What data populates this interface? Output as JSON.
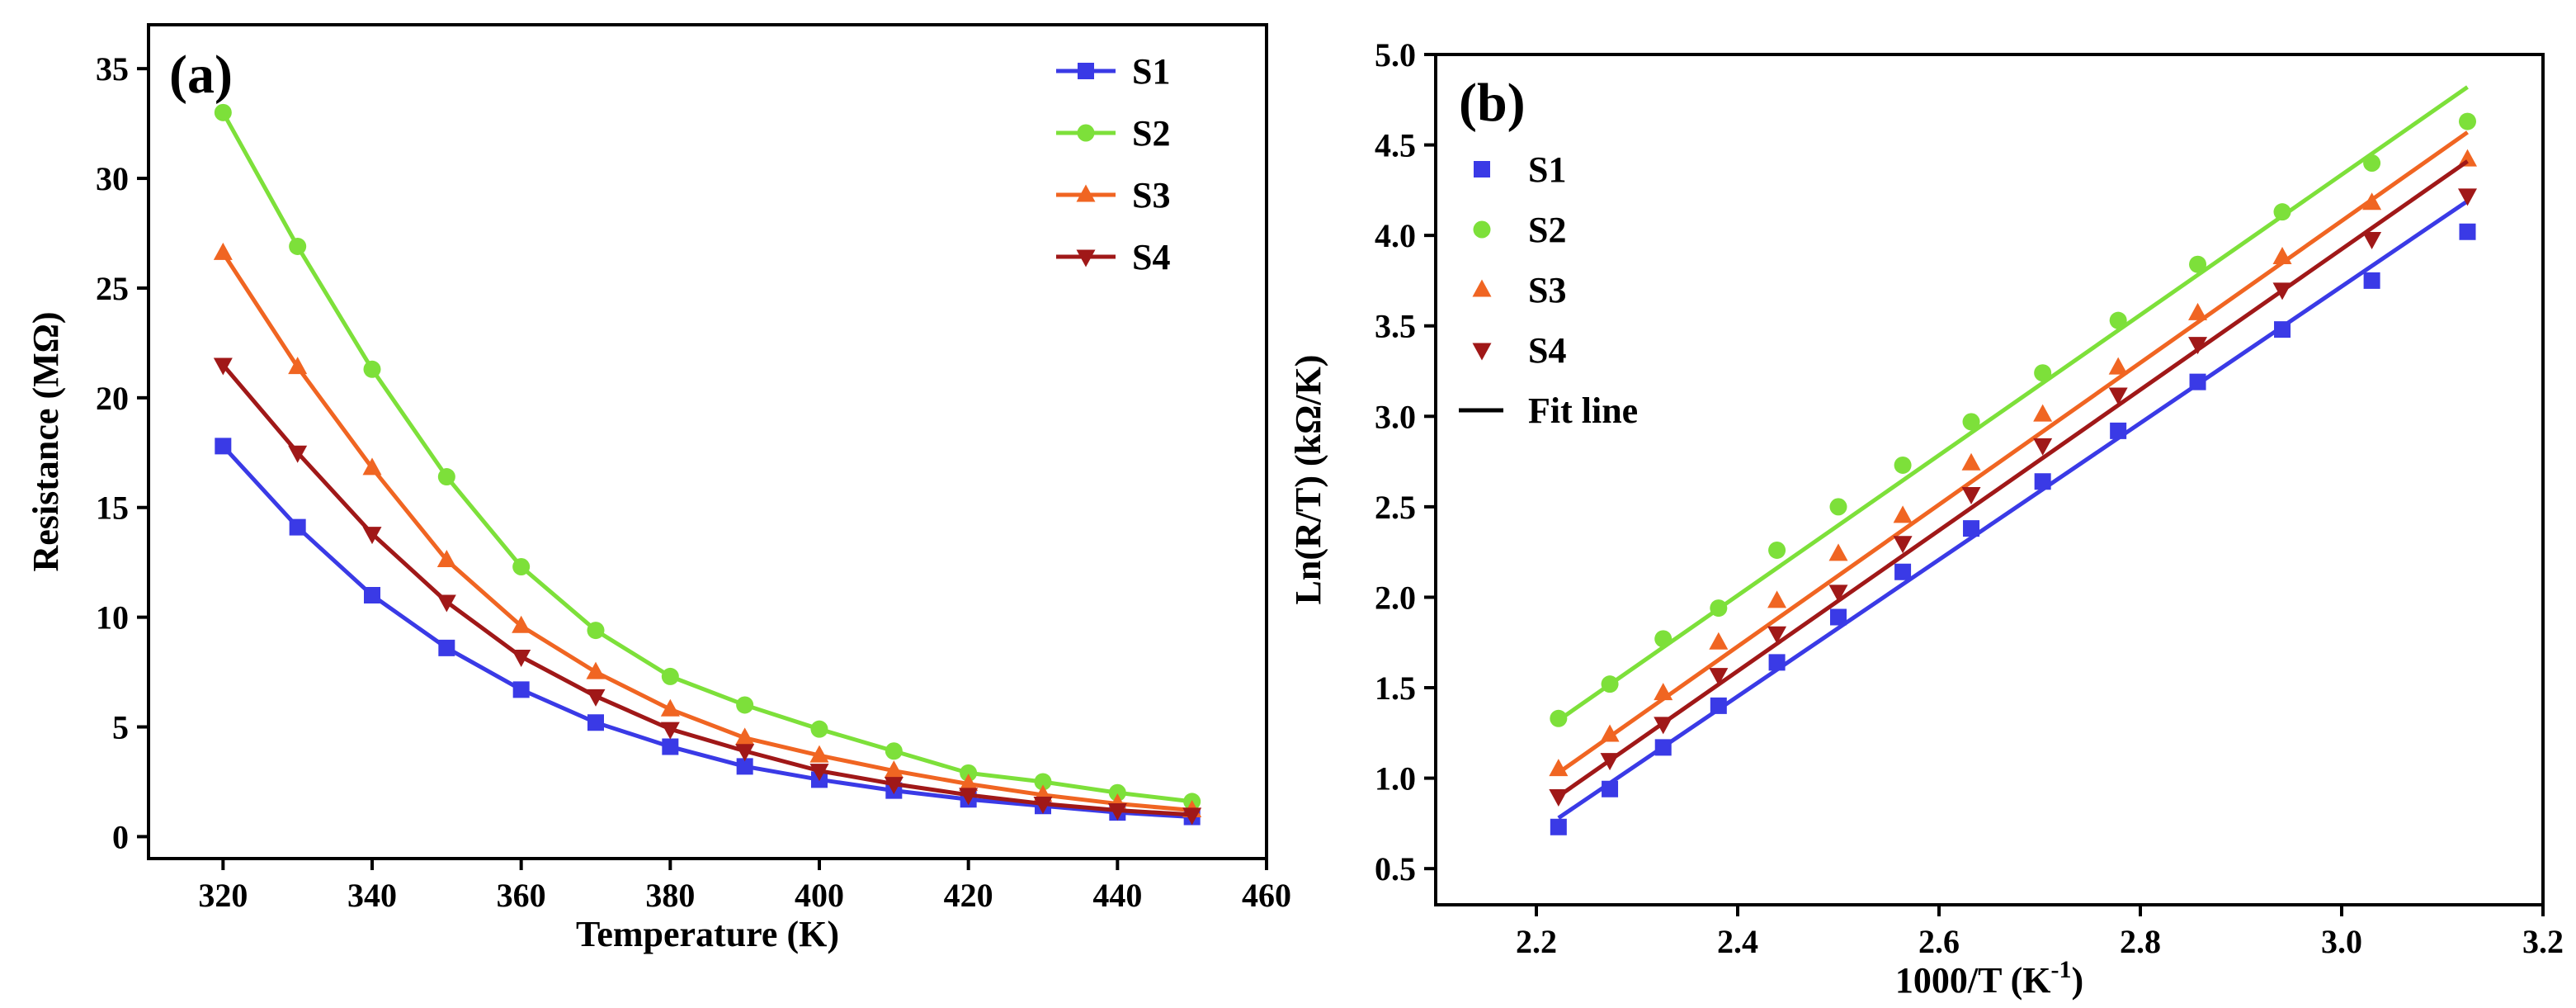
{
  "chart_data": [
    {
      "type": "line",
      "panel_label": "(a)",
      "xlabel": "Temperature (K)",
      "ylabel": "Resistance (MΩ)",
      "xlim": [
        310,
        460
      ],
      "ylim": [
        -1,
        37
      ],
      "xticks": [
        320,
        340,
        360,
        380,
        400,
        420,
        440,
        460
      ],
      "yticks": [
        0,
        5,
        10,
        15,
        20,
        25,
        30,
        35
      ],
      "legend_position": "top-right",
      "x": [
        320,
        330,
        340,
        350,
        360,
        370,
        380,
        390,
        400,
        410,
        420,
        430,
        440,
        450
      ],
      "series": [
        {
          "name": "S1",
          "color": "#3a3ae6",
          "marker": "square",
          "values": [
            17.8,
            14.1,
            11.0,
            8.6,
            6.7,
            5.2,
            4.1,
            3.2,
            2.6,
            2.1,
            1.7,
            1.4,
            1.1,
            0.9
          ]
        },
        {
          "name": "S2",
          "color": "#7de03a",
          "marker": "circle",
          "values": [
            33.0,
            26.9,
            21.3,
            16.4,
            12.3,
            9.4,
            7.3,
            6.0,
            4.9,
            3.9,
            2.9,
            2.5,
            2.0,
            1.6
          ]
        },
        {
          "name": "S3",
          "color": "#f06522",
          "marker": "triangle-up",
          "values": [
            26.6,
            21.4,
            16.8,
            12.6,
            9.6,
            7.5,
            5.8,
            4.5,
            3.7,
            3.0,
            2.4,
            1.9,
            1.5,
            1.2
          ]
        },
        {
          "name": "S4",
          "color": "#a01818",
          "marker": "triangle-down",
          "values": [
            21.5,
            17.5,
            13.8,
            10.7,
            8.2,
            6.4,
            4.9,
            3.9,
            3.0,
            2.4,
            1.9,
            1.5,
            1.2,
            1.0
          ]
        }
      ]
    },
    {
      "type": "scatter",
      "panel_label": "(b)",
      "xlabel": "1000/T (K",
      "xlabel_superscript": "-1",
      "xlabel_suffix": ")",
      "ylabel": "Ln(R/T) (kΩ/K)",
      "xlim": [
        2.1,
        3.2
      ],
      "ylim": [
        0.3,
        5.0
      ],
      "xticks": [
        2.2,
        2.4,
        2.6,
        2.8,
        3.0,
        3.2
      ],
      "yticks": [
        0.5,
        1.0,
        1.5,
        2.0,
        2.5,
        3.0,
        3.5,
        4.0,
        4.5,
        5.0
      ],
      "legend_position": "top-left",
      "fit_line_label": "Fit line",
      "x": [
        2.222,
        2.273,
        2.326,
        2.381,
        2.439,
        2.5,
        2.564,
        2.632,
        2.703,
        2.778,
        2.857,
        2.941,
        3.03,
        3.125
      ],
      "series": [
        {
          "name": "S1",
          "color": "#3a3ae6",
          "marker": "square",
          "values": [
            0.73,
            0.94,
            1.17,
            1.4,
            1.64,
            1.89,
            2.14,
            2.38,
            2.64,
            2.92,
            3.19,
            3.48,
            3.75,
            4.02
          ],
          "fit": {
            "x": [
              2.222,
              3.125
            ],
            "y": [
              0.78,
              4.19
            ]
          }
        },
        {
          "name": "S2",
          "color": "#7de03a",
          "marker": "circle",
          "values": [
            1.33,
            1.52,
            1.77,
            1.94,
            2.26,
            2.5,
            2.73,
            2.97,
            3.24,
            3.53,
            3.84,
            4.13,
            4.4,
            4.63
          ],
          "fit": {
            "x": [
              2.222,
              3.125
            ],
            "y": [
              1.32,
              4.82
            ]
          }
        },
        {
          "name": "S3",
          "color": "#f06522",
          "marker": "triangle-up",
          "values": [
            1.05,
            1.24,
            1.47,
            1.75,
            1.98,
            2.24,
            2.45,
            2.74,
            3.01,
            3.27,
            3.57,
            3.88,
            4.18,
            4.42
          ],
          "fit": {
            "x": [
              2.222,
              3.125
            ],
            "y": [
              1.03,
              4.57
            ]
          }
        },
        {
          "name": "S4",
          "color": "#a01818",
          "marker": "triangle-down",
          "values": [
            0.9,
            1.1,
            1.3,
            1.57,
            1.8,
            2.03,
            2.3,
            2.57,
            2.84,
            3.12,
            3.4,
            3.7,
            3.98,
            4.22
          ],
          "fit": {
            "x": [
              2.222,
              3.125
            ],
            "y": [
              0.9,
              4.41
            ]
          }
        }
      ]
    }
  ]
}
